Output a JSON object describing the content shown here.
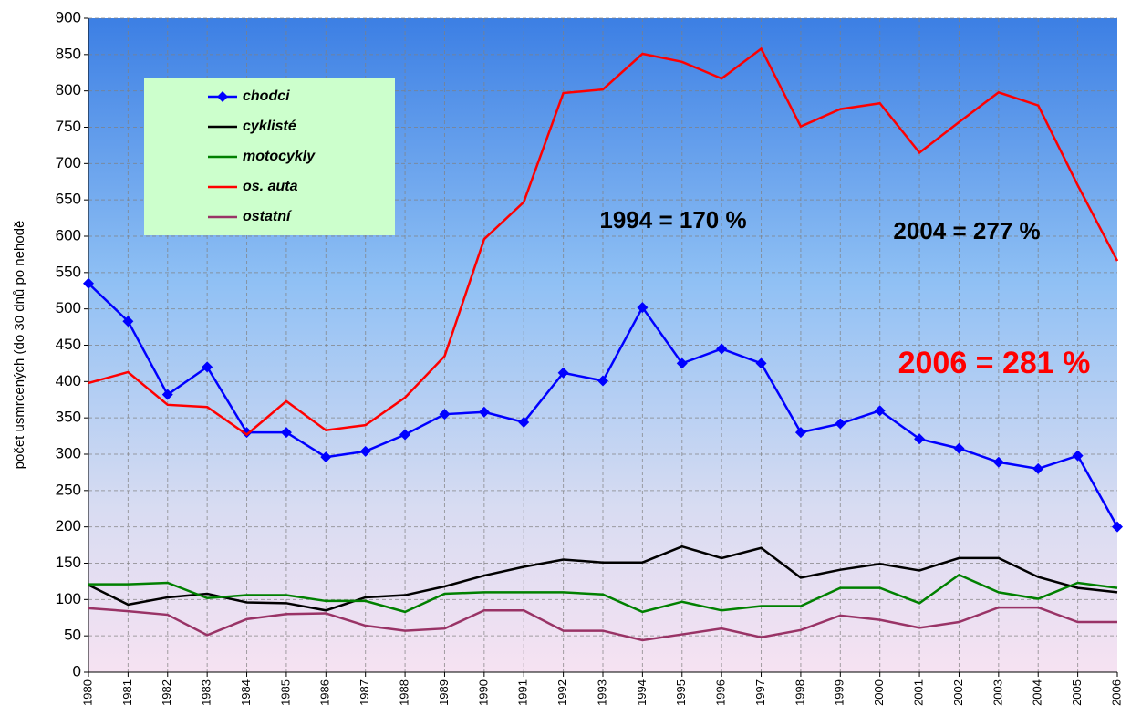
{
  "chart_data": {
    "type": "line",
    "y_label": "počet usmrcených (do 30 dnů po nehodě",
    "categories": [
      "1980",
      "1981",
      "1982",
      "1983",
      "1984",
      "1985",
      "1986",
      "1987",
      "1988",
      "1989",
      "1990",
      "1991",
      "1992",
      "1993",
      "1994",
      "1995",
      "1996",
      "1997",
      "1998",
      "1999",
      "2000",
      "2001",
      "2002",
      "2003",
      "2004",
      "2005",
      "2006"
    ],
    "series": [
      {
        "name": "chodci",
        "color": "#0000ff",
        "marker": "diamond",
        "values": [
          535,
          483,
          382,
          420,
          330,
          330,
          296,
          304,
          327,
          355,
          358,
          344,
          412,
          401,
          502,
          425,
          445,
          425,
          330,
          342,
          360,
          321,
          308,
          289,
          280,
          298,
          200
        ]
      },
      {
        "name": "cyklisté",
        "color": "#000000",
        "values": [
          120,
          93,
          103,
          108,
          96,
          95,
          85,
          103,
          106,
          118,
          133,
          145,
          155,
          151,
          151,
          173,
          157,
          171,
          130,
          141,
          149,
          140,
          157,
          157,
          131,
          116,
          110
        ]
      },
      {
        "name": "motocykly",
        "color": "#008000",
        "values": [
          121,
          121,
          123,
          102,
          106,
          106,
          98,
          98,
          83,
          108,
          110,
          110,
          110,
          107,
          83,
          97,
          85,
          91,
          91,
          116,
          116,
          95,
          134,
          110,
          101,
          123,
          116
        ]
      },
      {
        "name": "os. auta",
        "color": "#ff0000",
        "values": [
          398,
          413,
          368,
          365,
          327,
          373,
          333,
          340,
          378,
          435,
          596,
          647,
          797,
          802,
          851,
          840,
          817,
          858,
          751,
          775,
          783,
          715,
          757,
          798,
          780,
          670,
          566
        ]
      },
      {
        "name": "ostatní",
        "color": "#993366",
        "values": [
          88,
          84,
          79,
          51,
          73,
          80,
          81,
          64,
          57,
          60,
          85,
          85,
          57,
          57,
          44,
          52,
          60,
          48,
          58,
          78,
          72,
          61,
          69,
          89,
          89,
          69,
          69
        ]
      }
    ],
    "annotations": [
      {
        "text": "1994 = 170 %",
        "color": "#000000"
      },
      {
        "text": "2004 = 277 %",
        "color": "#000000"
      },
      {
        "text": "2006 = 281 %",
        "color": "#ff0000"
      }
    ],
    "ylim": [
      0,
      900
    ],
    "yticks": [
      0,
      50,
      100,
      150,
      200,
      250,
      300,
      350,
      400,
      450,
      500,
      550,
      600,
      650,
      700,
      750,
      800,
      850,
      900
    ],
    "grid": true
  }
}
